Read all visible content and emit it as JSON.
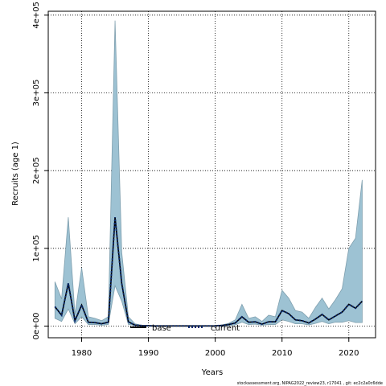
{
  "chart_data": {
    "type": "area",
    "xlabel": "Years",
    "ylabel": "Recruits (age 1)",
    "xlim": [
      1975,
      2024
    ],
    "ylim": [
      -15000,
      405000
    ],
    "x_ticks": [
      1980,
      1990,
      2000,
      2010,
      2020
    ],
    "y_ticks": [
      0,
      100000,
      200000,
      300000,
      400000
    ],
    "y_tick_labels": [
      "0e+00",
      "1e+05",
      "2e+05",
      "3e+05",
      "4e+05"
    ],
    "grid": true,
    "legend_position": "bottom",
    "x": [
      1976,
      1977,
      1978,
      1979,
      1980,
      1981,
      1982,
      1983,
      1984,
      1985,
      1986,
      1987,
      1988,
      1989,
      1990,
      1991,
      1992,
      1993,
      1994,
      1995,
      1996,
      1997,
      1998,
      1999,
      2000,
      2001,
      2002,
      2003,
      2004,
      2005,
      2006,
      2007,
      2008,
      2009,
      2010,
      2011,
      2012,
      2013,
      2014,
      2015,
      2016,
      2017,
      2018,
      2019,
      2020,
      2021,
      2022
    ],
    "series": [
      {
        "name": "base",
        "type": "ribbon",
        "color": "#9dc2d3",
        "edge_color": "#7f9fae",
        "lower": [
          10000,
          6000,
          22000,
          3000,
          12000,
          2000,
          2000,
          1000,
          2000,
          52000,
          32000,
          2000,
          500,
          300,
          200,
          100,
          100,
          100,
          100,
          100,
          100,
          100,
          100,
          100,
          100,
          300,
          800,
          1500,
          5000,
          2000,
          2500,
          1000,
          2000,
          2000,
          8000,
          6000,
          3000,
          3000,
          1500,
          3500,
          6000,
          3000,
          5000,
          5000,
          7000,
          4500,
          4500
        ],
        "upper": [
          57000,
          35000,
          140000,
          15000,
          75000,
          12000,
          10000,
          7000,
          12000,
          393000,
          95000,
          12000,
          3000,
          1000,
          700,
          400,
          300,
          300,
          300,
          300,
          300,
          300,
          300,
          300,
          600,
          1500,
          3500,
          8000,
          28000,
          10000,
          12000,
          6000,
          14000,
          12000,
          46000,
          36000,
          20000,
          18000,
          10000,
          24000,
          36000,
          22000,
          34000,
          48000,
          100000,
          113000,
          188000
        ]
      },
      {
        "name": "current",
        "type": "line",
        "color": "#0a2a6e",
        "values": [
          25000,
          14000,
          55000,
          7000,
          27000,
          5000,
          4500,
          3000,
          5000,
          140000,
          55000,
          5500,
          1200,
          600,
          400,
          200,
          200,
          200,
          200,
          200,
          200,
          200,
          200,
          200,
          300,
          800,
          2000,
          4000,
          12000,
          5000,
          5500,
          2500,
          5500,
          5500,
          20000,
          16000,
          8000,
          7000,
          4000,
          9000,
          15000,
          8000,
          13000,
          18000,
          28000,
          23000,
          32000
        ]
      }
    ],
    "footer": "stockassessment.org, NIPAG2022_review23, r17041 , git: ec2c2a0c6dde"
  }
}
